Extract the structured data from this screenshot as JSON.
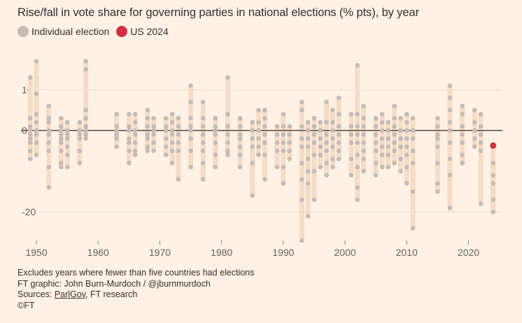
{
  "title": "Rise/fall in vote share for governing parties in national elections (% pts), by year",
  "legend": {
    "items": [
      {
        "label": "Individual election",
        "color": "#C6BCB5"
      },
      {
        "label": "US 2024",
        "color": "#D12F42"
      }
    ]
  },
  "footer": {
    "note": "Excludes years where fewer than five countries had elections",
    "credit": "FT graphic: John Burn-Murdoch / @jburnmurdoch",
    "sources_prefix": "Sources: ",
    "source_link": "ParlGov",
    "sources_suffix": ", FT research",
    "copyright": "©FT"
  },
  "colors": {
    "background": "#FFF1E5",
    "range_bar": "#F5DCC4",
    "point": "#C6BCB5",
    "highlight": "#D12F42",
    "zero_line": "#4E4844",
    "grid": "#E6D9CE"
  },
  "chart_data": {
    "type": "scatter",
    "title": "Rise/fall in vote share for governing parties in national elections (% pts), by year",
    "xlabel": "",
    "ylabel": "",
    "xlim": [
      1947.5,
      2025.5
    ],
    "ylim": [
      -27,
      20
    ],
    "x_ticks": [
      1950,
      1960,
      1970,
      1980,
      1990,
      2000,
      2010,
      2020
    ],
    "y_ticks": [
      10,
      0,
      -20
    ],
    "y_tick_labels": [
      "10",
      "0",
      "-20"
    ],
    "grid": true,
    "legend_position": "top-left",
    "series": [
      {
        "name": "Individual election",
        "color": "#C6BCB5",
        "years": [
          {
            "year": 1949,
            "values": [
              13,
              3,
              1,
              0,
              -1,
              -2,
              -3,
              -5,
              -7
            ]
          },
          {
            "year": 1950,
            "values": [
              17,
              9,
              4,
              2,
              0,
              -1,
              -3,
              -6
            ]
          },
          {
            "year": 1952,
            "values": [
              6,
              3,
              2,
              0,
              -1,
              -3,
              -5,
              -9,
              -14
            ]
          },
          {
            "year": 1954,
            "values": [
              3,
              1,
              0,
              -1,
              -2,
              -3,
              -5,
              -8,
              -9
            ]
          },
          {
            "year": 1955,
            "values": [
              2,
              0,
              -1,
              -2,
              -4,
              -6,
              -9
            ]
          },
          {
            "year": 1957,
            "values": [
              2,
              0,
              -1,
              -2,
              -5,
              -8
            ]
          },
          {
            "year": 1958,
            "values": [
              17,
              15,
              5,
              3,
              1,
              0,
              -1,
              -2
            ]
          },
          {
            "year": 1963,
            "values": [
              4,
              1,
              0,
              -1,
              -2,
              -4
            ]
          },
          {
            "year": 1965,
            "values": [
              4,
              1,
              0,
              -2,
              -3,
              -5,
              -8
            ]
          },
          {
            "year": 1966,
            "values": [
              4,
              2,
              0,
              -1,
              -3,
              -5,
              -6
            ]
          },
          {
            "year": 1968,
            "values": [
              5,
              3,
              1,
              -1,
              -2,
              -4,
              -5
            ]
          },
          {
            "year": 1969,
            "values": [
              3,
              1,
              0,
              -1,
              -3,
              -5
            ]
          },
          {
            "year": 1971,
            "values": [
              3,
              1,
              0,
              -2,
              -4,
              -6
            ]
          },
          {
            "year": 1972,
            "values": [
              4,
              2,
              0,
              -1,
              -3,
              -5,
              -8
            ]
          },
          {
            "year": 1973,
            "values": [
              3,
              1,
              -1,
              -3,
              -5,
              -12
            ]
          },
          {
            "year": 1975,
            "values": [
              11,
              7,
              3,
              1,
              0,
              -2,
              -5,
              -9
            ]
          },
          {
            "year": 1977,
            "values": [
              7,
              3,
              1,
              -1,
              -3,
              -5,
              -8,
              -12
            ]
          },
          {
            "year": 1979,
            "values": [
              3,
              1,
              0,
              -1,
              -3,
              -6,
              -9
            ]
          },
          {
            "year": 1981,
            "values": [
              13,
              4,
              1,
              -1,
              -3,
              -5,
              -6
            ]
          },
          {
            "year": 1983,
            "values": [
              3,
              1,
              -1,
              -2,
              -4,
              -6,
              -9
            ]
          },
          {
            "year": 1985,
            "values": [
              2,
              0,
              -2,
              -4,
              -8,
              -16
            ]
          },
          {
            "year": 1986,
            "values": [
              5,
              2,
              0,
              -2,
              -4,
              -6
            ]
          },
          {
            "year": 1987,
            "values": [
              5,
              3,
              1,
              -1,
              -3,
              -6,
              -12
            ]
          },
          {
            "year": 1989,
            "values": [
              1,
              -1,
              -3,
              -5,
              -9
            ]
          },
          {
            "year": 1990,
            "values": [
              4,
              1,
              -1,
              -3,
              -5,
              -9,
              -13
            ]
          },
          {
            "year": 1991,
            "values": [
              1,
              -1,
              -3,
              -5,
              -7
            ]
          },
          {
            "year": 1993,
            "values": [
              7,
              5,
              1,
              -2,
              -4,
              -8,
              -12,
              -17,
              -27
            ]
          },
          {
            "year": 1994,
            "values": [
              2,
              0,
              -2,
              -4,
              -7,
              -10,
              -13,
              -21
            ]
          },
          {
            "year": 1995,
            "values": [
              3,
              1,
              -1,
              -3,
              -6,
              -10,
              -17
            ]
          },
          {
            "year": 1996,
            "values": [
              2,
              0,
              -2,
              -4,
              -6,
              -9
            ]
          },
          {
            "year": 1997,
            "values": [
              7,
              2,
              -1,
              -3,
              -5,
              -8,
              -11
            ]
          },
          {
            "year": 1998,
            "values": [
              5,
              2,
              0,
              -2,
              -4,
              -7,
              -9
            ]
          },
          {
            "year": 1999,
            "values": [
              8,
              4,
              1,
              -1,
              -3,
              -5,
              -7
            ]
          },
          {
            "year": 2001,
            "values": [
              4,
              1,
              -1,
              -3,
              -7,
              -11
            ]
          },
          {
            "year": 2002,
            "values": [
              16,
              4,
              1,
              -1,
              -3,
              -6,
              -9,
              -14,
              -17
            ]
          },
          {
            "year": 2003,
            "values": [
              6,
              3,
              1,
              -1,
              -3,
              -5,
              -7,
              -10
            ]
          },
          {
            "year": 2005,
            "values": [
              3,
              1,
              -1,
              -3,
              -5,
              -8,
              -11
            ]
          },
          {
            "year": 2006,
            "values": [
              4,
              2,
              0,
              -2,
              -4,
              -6,
              -9
            ]
          },
          {
            "year": 2007,
            "values": [
              2,
              0,
              -2,
              -4,
              -6,
              -9
            ]
          },
          {
            "year": 2008,
            "values": [
              6,
              3,
              1,
              -1,
              -3,
              -5,
              -8
            ]
          },
          {
            "year": 2009,
            "values": [
              3,
              0,
              -2,
              -4,
              -7,
              -10
            ]
          },
          {
            "year": 2010,
            "values": [
              4,
              2,
              0,
              -2,
              -4,
              -6,
              -9,
              -13
            ]
          },
          {
            "year": 2011,
            "values": [
              3,
              0,
              -2,
              -5,
              -8,
              -15,
              -24
            ]
          },
          {
            "year": 2015,
            "values": [
              3,
              1,
              -1,
              -2,
              -4,
              -8,
              -13,
              -15
            ]
          },
          {
            "year": 2017,
            "values": [
              11,
              8,
              5,
              2,
              0,
              -3,
              -7,
              -11,
              -19
            ]
          },
          {
            "year": 2019,
            "values": [
              6,
              4,
              1,
              -1,
              -3,
              -6,
              -8
            ]
          },
          {
            "year": 2021,
            "values": [
              5,
              2,
              0,
              -2,
              -4
            ]
          },
          {
            "year": 2022,
            "values": [
              4,
              1,
              -1,
              -3,
              -5,
              -18
            ]
          },
          {
            "year": 2024,
            "values": [
              -4,
              -8,
              -11,
              -13,
              -17,
              -20
            ]
          }
        ]
      },
      {
        "name": "US 2024",
        "color": "#D12F42",
        "points": [
          {
            "year": 2024,
            "value": -3.7
          }
        ]
      }
    ]
  }
}
